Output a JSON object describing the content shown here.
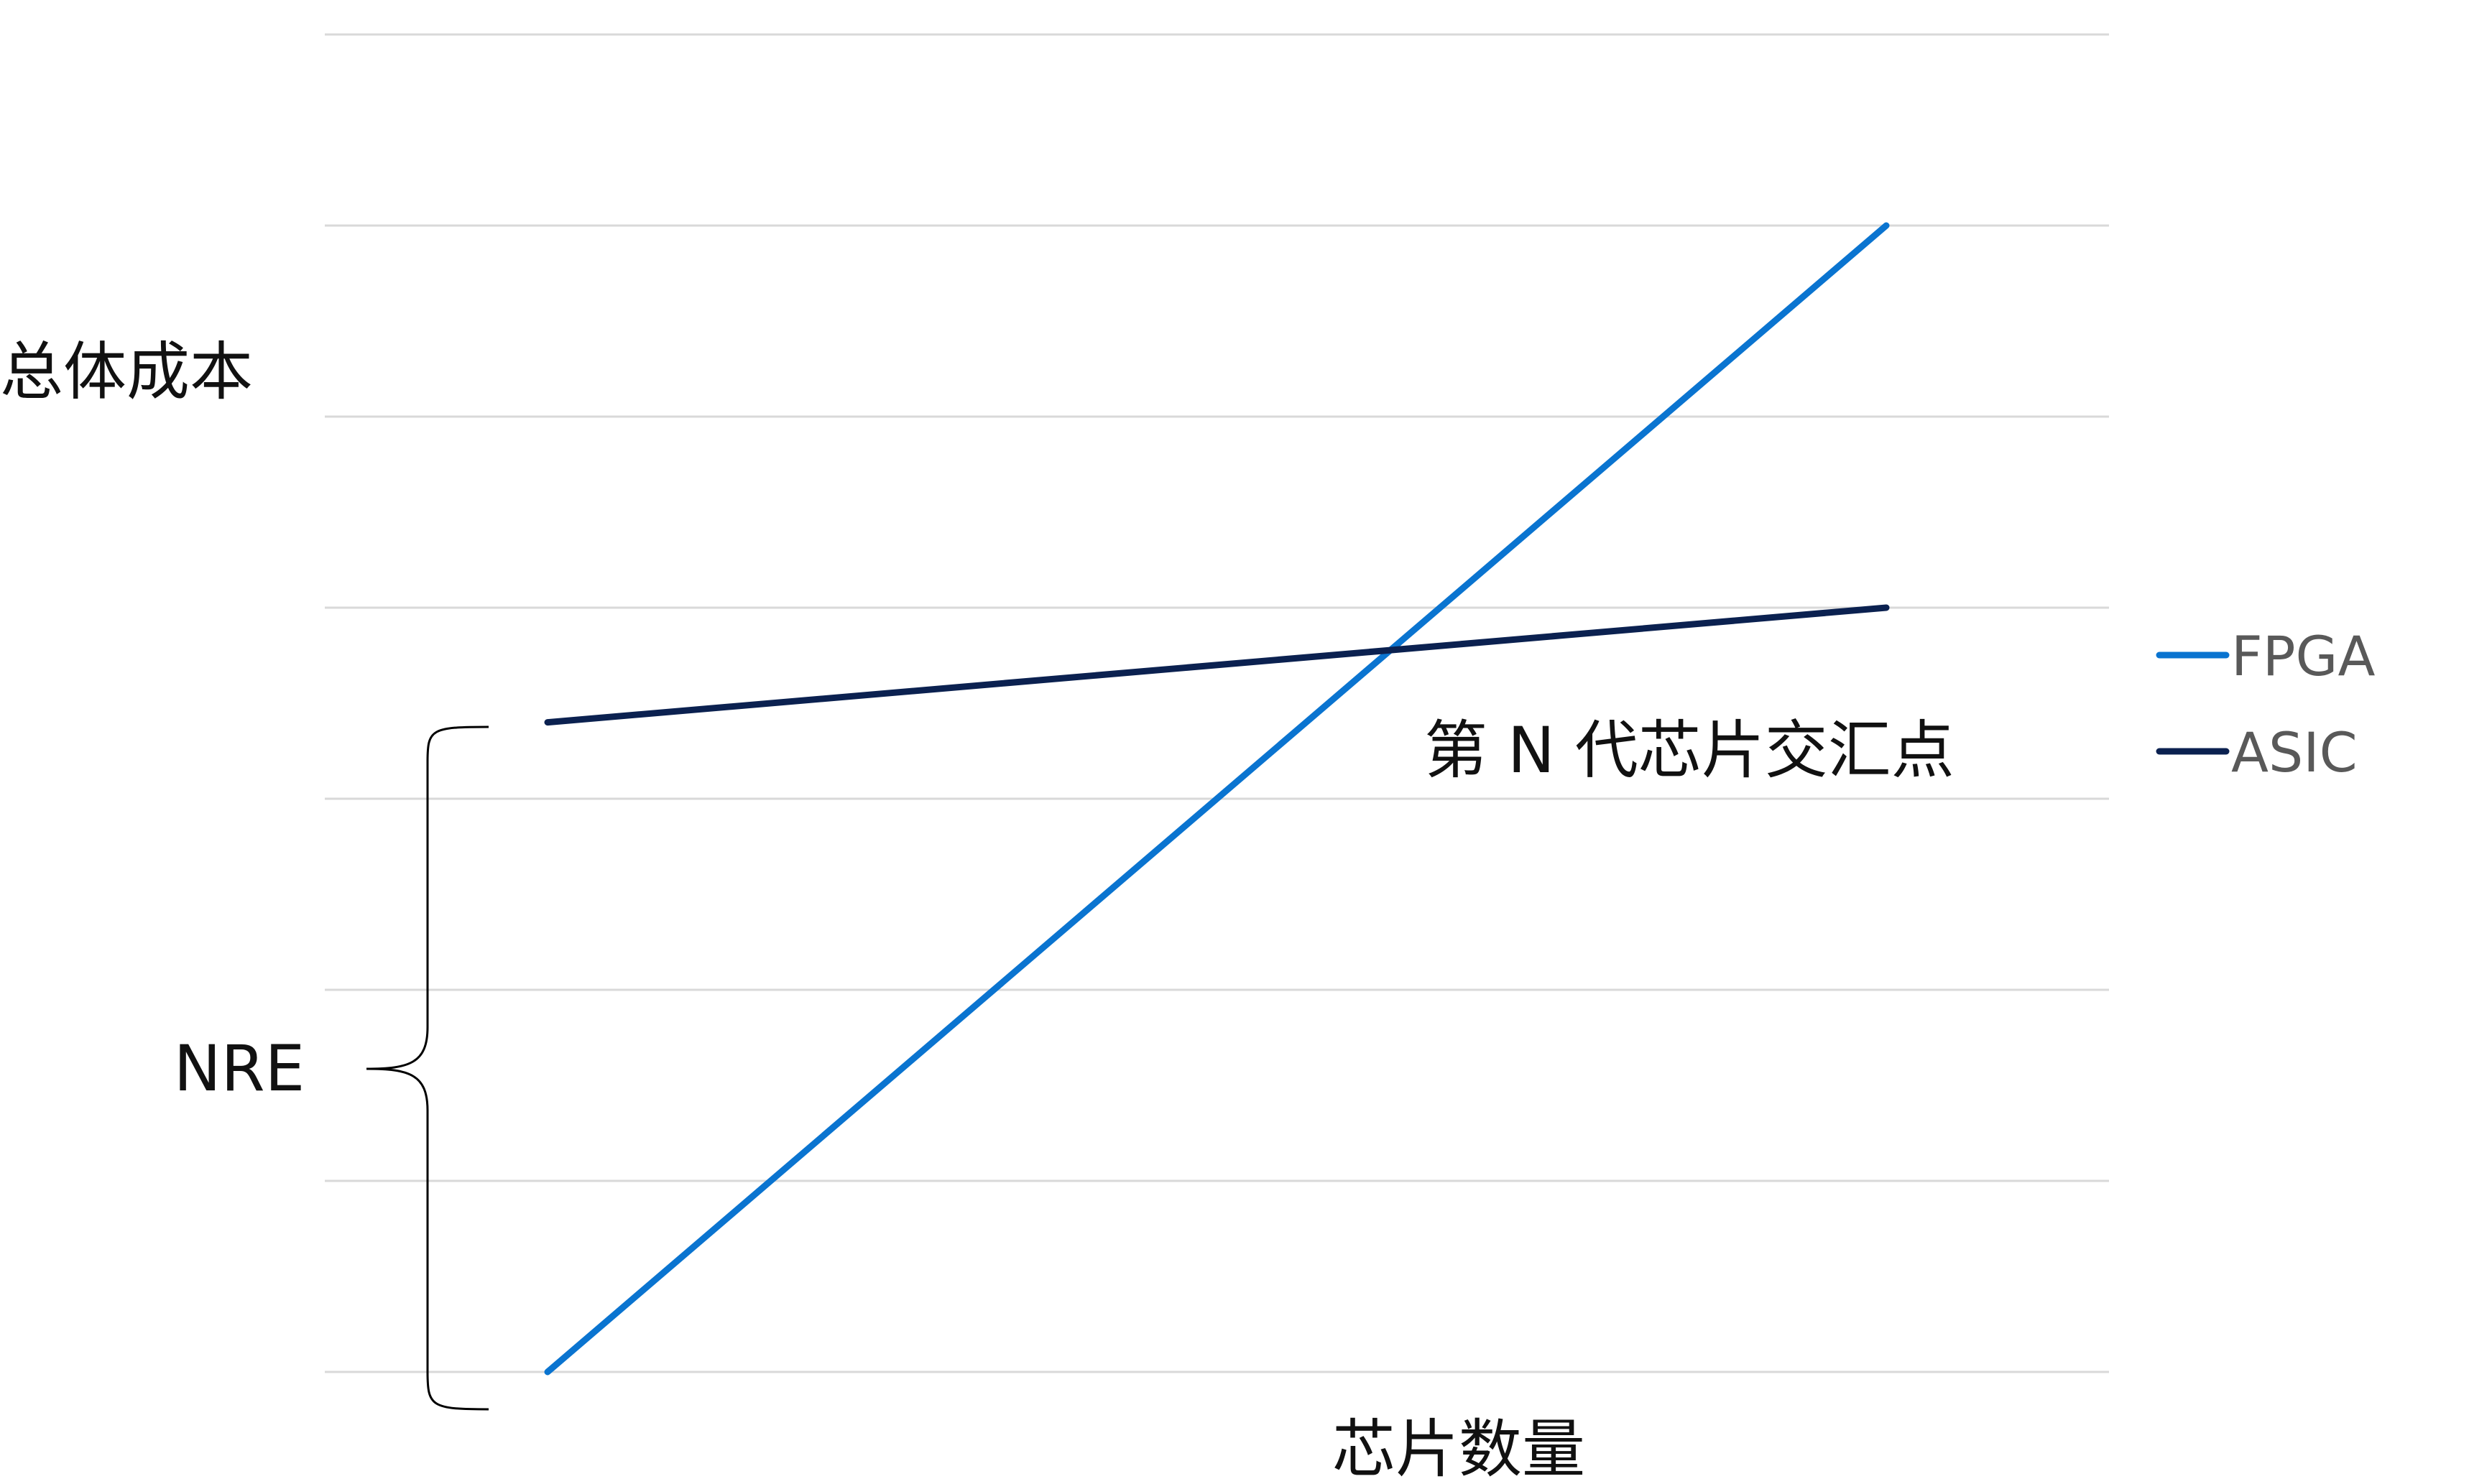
{
  "chart_data": {
    "type": "line",
    "title": "",
    "xlabel": "芯片数量",
    "ylabel": "总体成本",
    "x": [
      0,
      1
    ],
    "ylim": [
      0,
      7
    ],
    "grid": true,
    "legend_position": "right",
    "series": [
      {
        "name": "FPGA",
        "values": [
          0,
          6
        ],
        "color": "#0A74D0"
      },
      {
        "name": "ASIC",
        "values": [
          3.4,
          4
        ],
        "color": "#0B2150"
      }
    ],
    "annotations": {
      "nre": "NRE",
      "crossover": "第 N 代芯片交汇点"
    }
  },
  "colors": {
    "gridline": "#D9D9D9",
    "brace": "#000000",
    "text": "#111111",
    "legend_text": "#595959"
  }
}
